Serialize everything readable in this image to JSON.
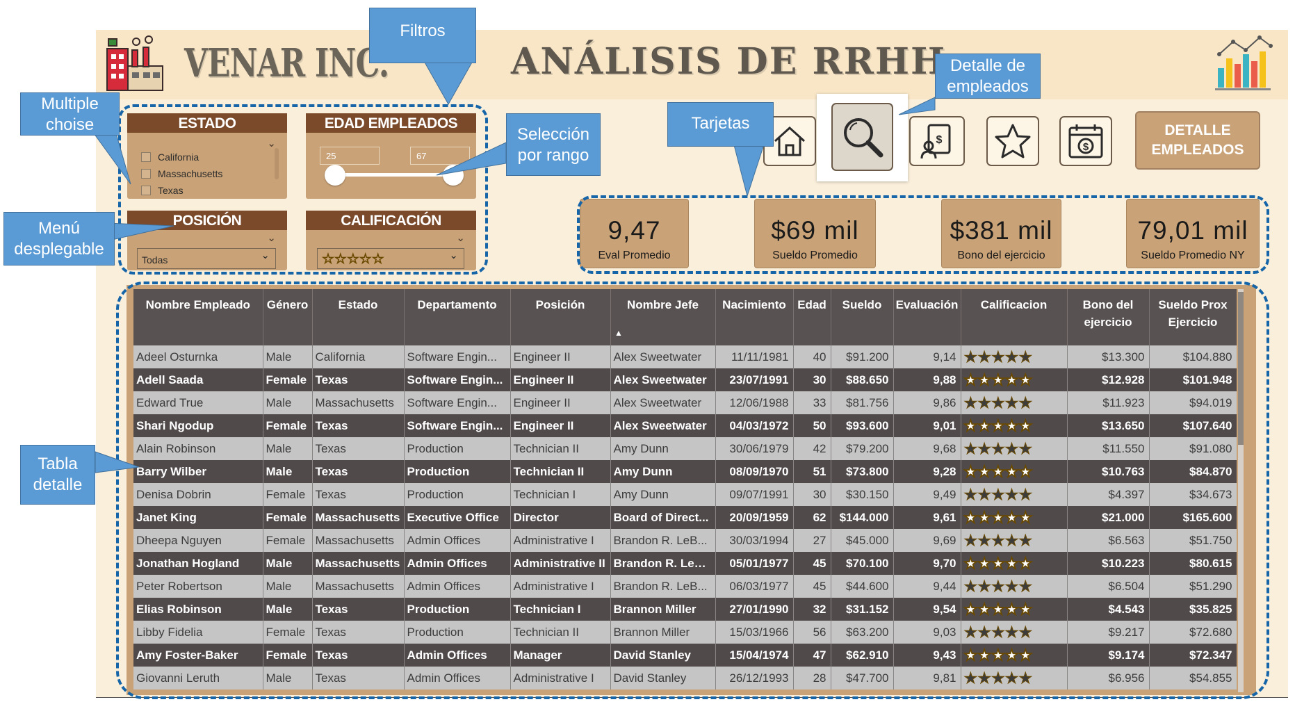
{
  "header": {
    "brand": "VENAR INC.",
    "title": "ANÁLISIS DE RRHH"
  },
  "slicers": {
    "estado": {
      "title": "ESTADO",
      "options": [
        "California",
        "Massachusetts",
        "Texas"
      ]
    },
    "edad": {
      "title": "EDAD EMPLEADOS",
      "min": "25",
      "max": "67"
    },
    "posicion": {
      "title": "POSICIÓN",
      "selected": "Todas"
    },
    "calificacion": {
      "title": "CALIFICACIÓN",
      "selected": "☆☆☆☆☆"
    }
  },
  "nav": {
    "icons": [
      "home-icon",
      "search-icon",
      "report-icon",
      "star-icon",
      "salary-calendar-icon"
    ],
    "detalle_label": "DETALLE EMPLEADOS"
  },
  "cards": [
    {
      "value": "9,47",
      "label": "Eval Promedio"
    },
    {
      "value": "$69 mil",
      "label": "Sueldo Promedio"
    },
    {
      "value": "$381 mil",
      "label": "Bono del ejercicio"
    },
    {
      "value": "79,01 mil",
      "label": "Sueldo Promedio NY"
    }
  ],
  "table": {
    "columns": [
      "Nombre Empleado",
      "Género",
      "Estado",
      "Departamento",
      "Posición",
      "Nombre Jefe",
      "Nacimiento",
      "Edad",
      "Sueldo",
      "Evaluación",
      "Calificacion",
      "Bono del ejercicio",
      "Sueldo Prox Ejercicio"
    ],
    "rows": [
      [
        "Adeel Osturnka",
        "Male",
        "California",
        "Software Engin...",
        "Engineer II",
        "Alex Sweetwater",
        "11/11/1981",
        "40",
        "$91.200",
        "9,14",
        "★★★★★",
        "$13.300",
        "$104.880"
      ],
      [
        "Adell Saada",
        "Female",
        "Texas",
        "Software Engin...",
        "Engineer II",
        "Alex Sweetwater",
        "23/07/1991",
        "30",
        "$88.650",
        "9,88",
        "★★★★★",
        "$12.928",
        "$101.948"
      ],
      [
        "Edward True",
        "Male",
        "Massachusetts",
        "Software Engin...",
        "Engineer II",
        "Alex Sweetwater",
        "12/06/1988",
        "33",
        "$81.756",
        "9,86",
        "★★★★★",
        "$11.923",
        "$94.019"
      ],
      [
        "Shari  Ngodup",
        "Female",
        "Texas",
        "Software Engin...",
        "Engineer II",
        "Alex Sweetwater",
        "04/03/1972",
        "50",
        "$93.600",
        "9,01",
        "★★★★★",
        "$13.650",
        "$107.640"
      ],
      [
        "Alain Robinson",
        "Male",
        "Texas",
        "Production",
        "Technician II",
        "Amy Dunn",
        "30/06/1979",
        "42",
        "$79.200",
        "9,68",
        "★★★★★",
        "$11.550",
        "$91.080"
      ],
      [
        "Barry Wilber",
        "Male",
        "Texas",
        "Production",
        "Technician II",
        "Amy Dunn",
        "08/09/1970",
        "51",
        "$73.800",
        "9,28",
        "★★★★★",
        "$10.763",
        "$84.870"
      ],
      [
        "Denisa Dobrin",
        "Female",
        "Texas",
        "Production",
        "Technician I",
        "Amy Dunn",
        "09/07/1991",
        "30",
        "$30.150",
        "9,49",
        "★★★★★",
        "$4.397",
        "$34.673"
      ],
      [
        "Janet King",
        "Female",
        "Massachusetts",
        "Executive Office",
        "Director",
        "Board of Direct...",
        "20/09/1959",
        "62",
        "$144.000",
        "9,61",
        "★★★★★",
        "$21.000",
        "$165.600"
      ],
      [
        "Dheepa Nguyen",
        "Female",
        "Massachusetts",
        "Admin Offices",
        "Administrative I",
        "Brandon R. LeB...",
        "30/03/1994",
        "27",
        "$45.000",
        "9,69",
        "★★★★★",
        "$6.563",
        "$51.750"
      ],
      [
        "Jonathan Hogland",
        "Male",
        "Massachusetts",
        "Admin Offices",
        "Administrative II",
        "Brandon R. LeB...",
        "05/01/1977",
        "45",
        "$70.100",
        "9,70",
        "★★★★★",
        "$10.223",
        "$80.615"
      ],
      [
        "Peter Robertson",
        "Male",
        "Massachusetts",
        "Admin Offices",
        "Administrative I",
        "Brandon R. LeB...",
        "06/03/1977",
        "45",
        "$44.600",
        "9,44",
        "★★★★★",
        "$6.504",
        "$51.290"
      ],
      [
        "Elias Robinson",
        "Male",
        "Texas",
        "Production",
        "Technician I",
        "Brannon Miller",
        "27/01/1990",
        "32",
        "$31.152",
        "9,54",
        "★★★★★",
        "$4.543",
        "$35.825"
      ],
      [
        "Libby Fidelia",
        "Female",
        "Texas",
        "Production",
        "Technician II",
        "Brannon Miller",
        "15/03/1966",
        "56",
        "$63.200",
        "9,03",
        "★★★★★",
        "$9.217",
        "$72.680"
      ],
      [
        "Amy Foster-Baker",
        "Female",
        "Texas",
        "Admin Offices",
        "Manager",
        "David Stanley",
        "15/04/1974",
        "47",
        "$62.910",
        "9,43",
        "★★★★★",
        "$9.174",
        "$72.347"
      ],
      [
        "Giovanni Leruth",
        "Male",
        "Texas",
        "Admin Offices",
        "Administrative I",
        "David Stanley",
        "26/12/1993",
        "28",
        "$47.700",
        "9,81",
        "★★★★★",
        "$6.956",
        "$54.855"
      ]
    ]
  },
  "annotations": {
    "filtros": "Filtros",
    "multiple_choise": "Multiple choise",
    "menu_desplegable": "Menú desplegable",
    "seleccion_rango": "Selección por rango",
    "tarjetas": "Tarjetas",
    "detalle_empleados": "Detalle de empleados",
    "tabla_detalle": "Tabla detalle"
  },
  "colors": {
    "background": "#faefdb",
    "slicer_header": "#7a4a2b",
    "slicer_body": "#c9a277",
    "row_light": "#c5c5c5",
    "row_dark": "#504a4b",
    "callout": "#5b9bd5",
    "dashed_outline": "#1565a8",
    "star": "#f4c21b"
  }
}
